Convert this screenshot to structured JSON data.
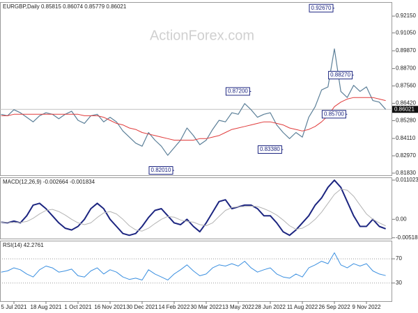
{
  "chart_data": [
    {
      "type": "line",
      "title": "EURGBP,Daily 0.85815 0.86074 0.85779 0.86021",
      "watermark": "ActionForex.com",
      "ylim": [
        0.8169,
        0.9307
      ],
      "yticks": [
        {
          "value": 0.9215,
          "label": "0.92150"
        },
        {
          "value": 0.9105,
          "label": "0.91050"
        },
        {
          "value": 0.8987,
          "label": "0.89870"
        },
        {
          "value": 0.887,
          "label": "0.88700"
        },
        {
          "value": 0.8756,
          "label": "0.87560"
        },
        {
          "value": 0.8642,
          "label": "0.86420"
        },
        {
          "value": 0.8528,
          "label": "0.85280"
        },
        {
          "value": 0.8411,
          "label": "0.84110"
        },
        {
          "value": 0.8297,
          "label": "0.82970"
        },
        {
          "value": 0.8183,
          "label": "0.81830"
        }
      ],
      "grid": false,
      "last_price": 0.86021,
      "series": [
        {
          "color": "#5b7f98",
          "width": 1.2,
          "values": [
            0.857,
            0.856,
            0.86,
            0.858,
            0.855,
            0.852,
            0.856,
            0.858,
            0.857,
            0.854,
            0.857,
            0.859,
            0.853,
            0.851,
            0.856,
            0.857,
            0.852,
            0.855,
            0.852,
            0.846,
            0.842,
            0.838,
            0.836,
            0.845,
            0.84,
            0.836,
            0.83,
            0.835,
            0.84,
            0.848,
            0.843,
            0.837,
            0.84,
            0.847,
            0.853,
            0.852,
            0.858,
            0.857,
            0.864,
            0.86,
            0.855,
            0.857,
            0.858,
            0.85,
            0.845,
            0.841,
            0.845,
            0.842,
            0.855,
            0.862,
            0.873,
            0.875,
            0.9,
            0.872,
            0.868,
            0.876,
            0.872,
            0.875,
            0.866,
            0.865,
            0.86021
          ]
        },
        {
          "color": "#e03a3a",
          "width": 1,
          "values": [
            0.856,
            0.856,
            0.857,
            0.857,
            0.857,
            0.857,
            0.857,
            0.857,
            0.857,
            0.857,
            0.857,
            0.857,
            0.857,
            0.856,
            0.856,
            0.856,
            0.855,
            0.853,
            0.851,
            0.85,
            0.848,
            0.847,
            0.845,
            0.844,
            0.843,
            0.842,
            0.841,
            0.84,
            0.84,
            0.84,
            0.84,
            0.841,
            0.841,
            0.842,
            0.843,
            0.845,
            0.847,
            0.848,
            0.849,
            0.85,
            0.851,
            0.852,
            0.852,
            0.851,
            0.85,
            0.848,
            0.847,
            0.846,
            0.847,
            0.849,
            0.852,
            0.856,
            0.862,
            0.865,
            0.867,
            0.868,
            0.868,
            0.868,
            0.868,
            0.867,
            0.866
          ]
        }
      ],
      "annotations": [
        {
          "value": 0.9267,
          "label": "0.92670",
          "at": 52
        },
        {
          "value": 0.8827,
          "label": "0.88270",
          "at": 55
        },
        {
          "value": 0.872,
          "label": "0.87200",
          "at": 39
        },
        {
          "value": 0.857,
          "label": "0.85700",
          "at": 54
        },
        {
          "value": 0.8338,
          "label": "0.83380",
          "at": 44
        },
        {
          "value": 0.8201,
          "label": "0.82010",
          "at": 27
        }
      ]
    },
    {
      "type": "line",
      "title": "MACD(12,26,9) -0.002664 -0.001834",
      "ylim": [
        -0.00542,
        0.0118
      ],
      "yticks": [
        0.011023,
        {
          "value": 0,
          "label": "0.00"
        },
        -0.005182
      ],
      "grid": false,
      "series": [
        {
          "color": "#1c2580",
          "width": 2,
          "values": [
            -0.0008,
            -0.001,
            -0.0005,
            -0.001,
            0.001,
            0.004,
            0.0045,
            0.003,
            0.001,
            -0.001,
            -0.0025,
            -0.003,
            -0.002,
            0,
            0.003,
            0.0045,
            0.003,
            0,
            -0.002,
            -0.004,
            -0.0045,
            -0.004,
            -0.002,
            0.0005,
            0.0025,
            0.003,
            0.001,
            -0.001,
            -0.0015,
            0,
            -0.002,
            -0.0035,
            -0.001,
            0.002,
            0.005,
            0.0055,
            0.003,
            0.0035,
            0.004,
            0.004,
            0.003,
            0.001,
            0.001,
            -0.001,
            -0.0035,
            -0.0045,
            -0.003,
            -0.001,
            0.001,
            0.004,
            0.006,
            0.009,
            0.011,
            0.009,
            0.005,
            0.001,
            -0.002,
            -0.002,
            0,
            -0.002,
            -0.002664
          ]
        },
        {
          "color": "#b4b4b4",
          "width": 1,
          "values": [
            -0.0008,
            -0.0009,
            -0.0009,
            -0.0009,
            -0.0006,
            0.0003,
            0.0015,
            0.0025,
            0.0028,
            0.0022,
            0.0012,
            0,
            -0.001,
            -0.0015,
            -0.001,
            0.0005,
            0.0018,
            0.0022,
            0.0015,
            0,
            -0.0018,
            -0.003,
            -0.0033,
            -0.0025,
            -0.0012,
            0,
            0.0008,
            0.0006,
            -0.0002,
            -0.0006,
            -0.0008,
            -0.0015,
            -0.0018,
            -0.001,
            0.0008,
            0.0025,
            0.0033,
            0.0035,
            0.0036,
            0.0037,
            0.0036,
            0.003,
            0.0022,
            0.0012,
            -0.0002,
            -0.0018,
            -0.0028,
            -0.0025,
            -0.0015,
            0,
            0.002,
            0.0045,
            0.007,
            0.0085,
            0.0082,
            0.0065,
            0.004,
            0.0015,
            0,
            -0.001,
            -0.001834
          ]
        }
      ]
    },
    {
      "type": "line",
      "title": "RSI(14) 42.2761",
      "ylim": [
        0,
        100
      ],
      "yticks": [
        70,
        30
      ],
      "grid": true,
      "categories": [
        null,
        null,
        "5 Jul 2021",
        null,
        null,
        null,
        null,
        "18 Aug 2021",
        null,
        null,
        null,
        null,
        "1 Oct 2021",
        null,
        null,
        null,
        null,
        "16 Nov 2021",
        null,
        null,
        null,
        null,
        "30 Dec 2021",
        null,
        null,
        null,
        null,
        "14 Feb 2022",
        null,
        null,
        null,
        null,
        "30 Mar 2022",
        null,
        null,
        null,
        null,
        "13 May 2022",
        null,
        null,
        null,
        null,
        "28 Jun 2022",
        null,
        null,
        null,
        null,
        "11 Aug 2022",
        null,
        null,
        null,
        null,
        "26 Sep 2022",
        null,
        null,
        null,
        null,
        "9 Nov 2022",
        null,
        null,
        null
      ],
      "series": [
        {
          "color": "#3a8fe0",
          "width": 1,
          "values": [
            48,
            50,
            55,
            52,
            45,
            40,
            52,
            58,
            55,
            48,
            50,
            53,
            42,
            40,
            50,
            55,
            45,
            52,
            48,
            40,
            36,
            38,
            35,
            52,
            45,
            40,
            35,
            45,
            52,
            60,
            50,
            42,
            45,
            55,
            60,
            58,
            62,
            58,
            66,
            55,
            48,
            52,
            55,
            45,
            40,
            38,
            45,
            40,
            55,
            60,
            66,
            62,
            80,
            60,
            55,
            62,
            58,
            62,
            50,
            45,
            42.2761
          ]
        }
      ]
    }
  ]
}
